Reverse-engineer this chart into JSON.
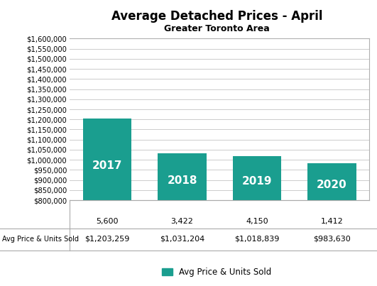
{
  "title": "Average Detached Prices - April",
  "subtitle": "Greater Toronto Area",
  "categories": [
    "2017",
    "2018",
    "2019",
    "2020"
  ],
  "values": [
    1203259,
    1031204,
    1018839,
    983630
  ],
  "units_sold_labels": [
    "5,600",
    "3,422",
    "4,150",
    "1,412"
  ],
  "price_labels": [
    "$1,203,259",
    "$1,031,204",
    "$1,018,839",
    "$983,630"
  ],
  "bar_color": "#1a9e8f",
  "bar_label_color": "#ffffff",
  "ylim_min": 800000,
  "ylim_max": 1600000,
  "ytick_step": 50000,
  "legend_label": "Avg Price & Units Sold",
  "background_color": "#ffffff",
  "grid_color": "#cccccc",
  "table_row_label": "Avg Price & Units Sold"
}
